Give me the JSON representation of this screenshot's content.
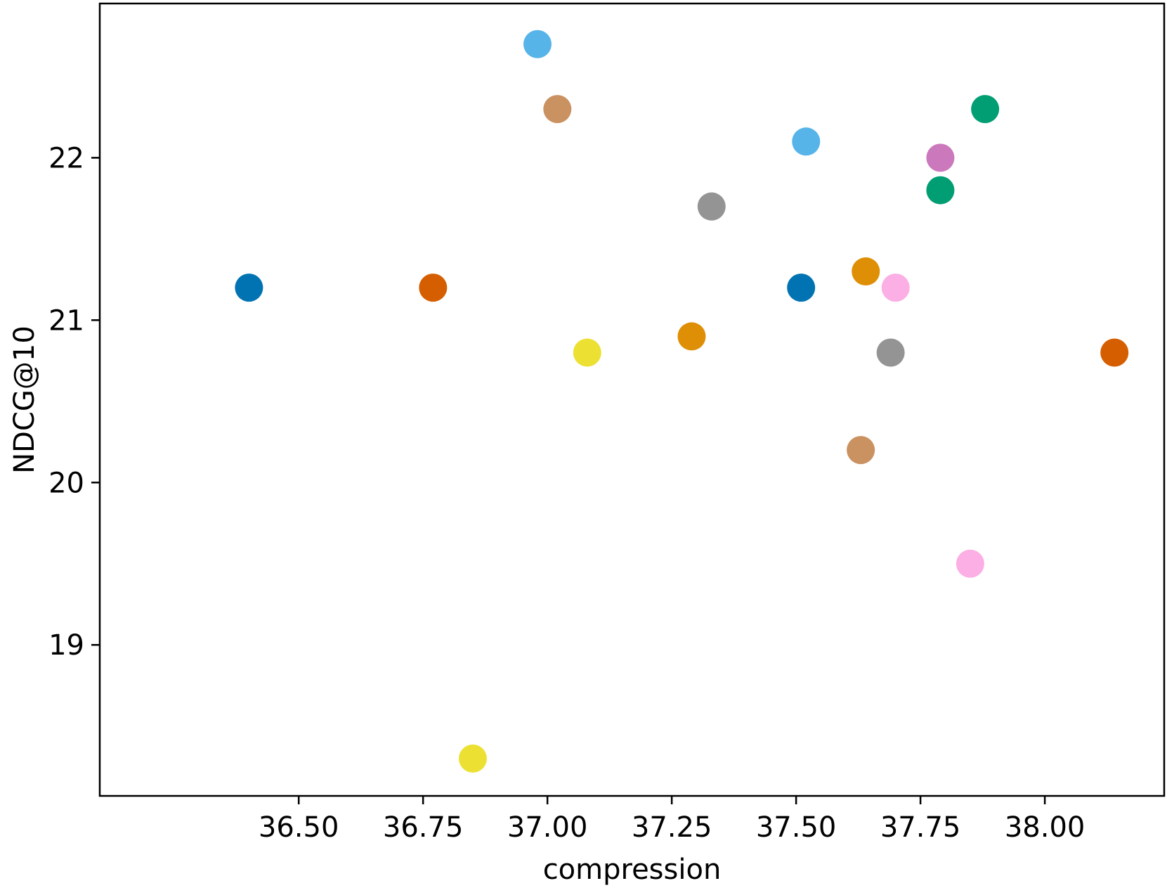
{
  "chart_data": {
    "type": "scatter",
    "title": "",
    "xlabel": "compression",
    "ylabel": "NDCG@10",
    "xlim": [
      36.1,
      38.24
    ],
    "ylim": [
      18.07,
      22.95
    ],
    "grid": false,
    "x_ticks": [
      "36.50",
      "36.75",
      "37.00",
      "37.25",
      "37.50",
      "37.75",
      "38.00"
    ],
    "x_tick_values": [
      36.5,
      36.75,
      37.0,
      37.25,
      37.5,
      37.75,
      38.0
    ],
    "y_ticks": [
      "19",
      "20",
      "21",
      "22"
    ],
    "y_tick_values": [
      19,
      20,
      21,
      22
    ],
    "points": [
      {
        "x": 36.4,
        "y": 21.2,
        "color": "#0173b2"
      },
      {
        "x": 36.77,
        "y": 21.2,
        "color": "#d55e00"
      },
      {
        "x": 36.85,
        "y": 18.3,
        "color": "#ece133"
      },
      {
        "x": 36.98,
        "y": 22.7,
        "color": "#56b4e9"
      },
      {
        "x": 37.02,
        "y": 22.3,
        "color": "#ca9161"
      },
      {
        "x": 37.08,
        "y": 20.8,
        "color": "#ece133"
      },
      {
        "x": 37.29,
        "y": 20.9,
        "color": "#de8f05"
      },
      {
        "x": 37.33,
        "y": 21.7,
        "color": "#949494"
      },
      {
        "x": 37.51,
        "y": 21.2,
        "color": "#0173b2"
      },
      {
        "x": 37.52,
        "y": 22.1,
        "color": "#56b4e9"
      },
      {
        "x": 37.63,
        "y": 20.2,
        "color": "#ca9161"
      },
      {
        "x": 37.64,
        "y": 21.3,
        "color": "#de8f05"
      },
      {
        "x": 37.69,
        "y": 20.8,
        "color": "#949494"
      },
      {
        "x": 37.7,
        "y": 21.2,
        "color": "#fbafe4"
      },
      {
        "x": 37.79,
        "y": 22.0,
        "color": "#cc78bc"
      },
      {
        "x": 37.79,
        "y": 21.8,
        "color": "#029e73"
      },
      {
        "x": 37.85,
        "y": 19.5,
        "color": "#fbafe4"
      },
      {
        "x": 37.88,
        "y": 22.3,
        "color": "#029e73"
      },
      {
        "x": 38.14,
        "y": 20.8,
        "color": "#d55e00"
      }
    ]
  }
}
